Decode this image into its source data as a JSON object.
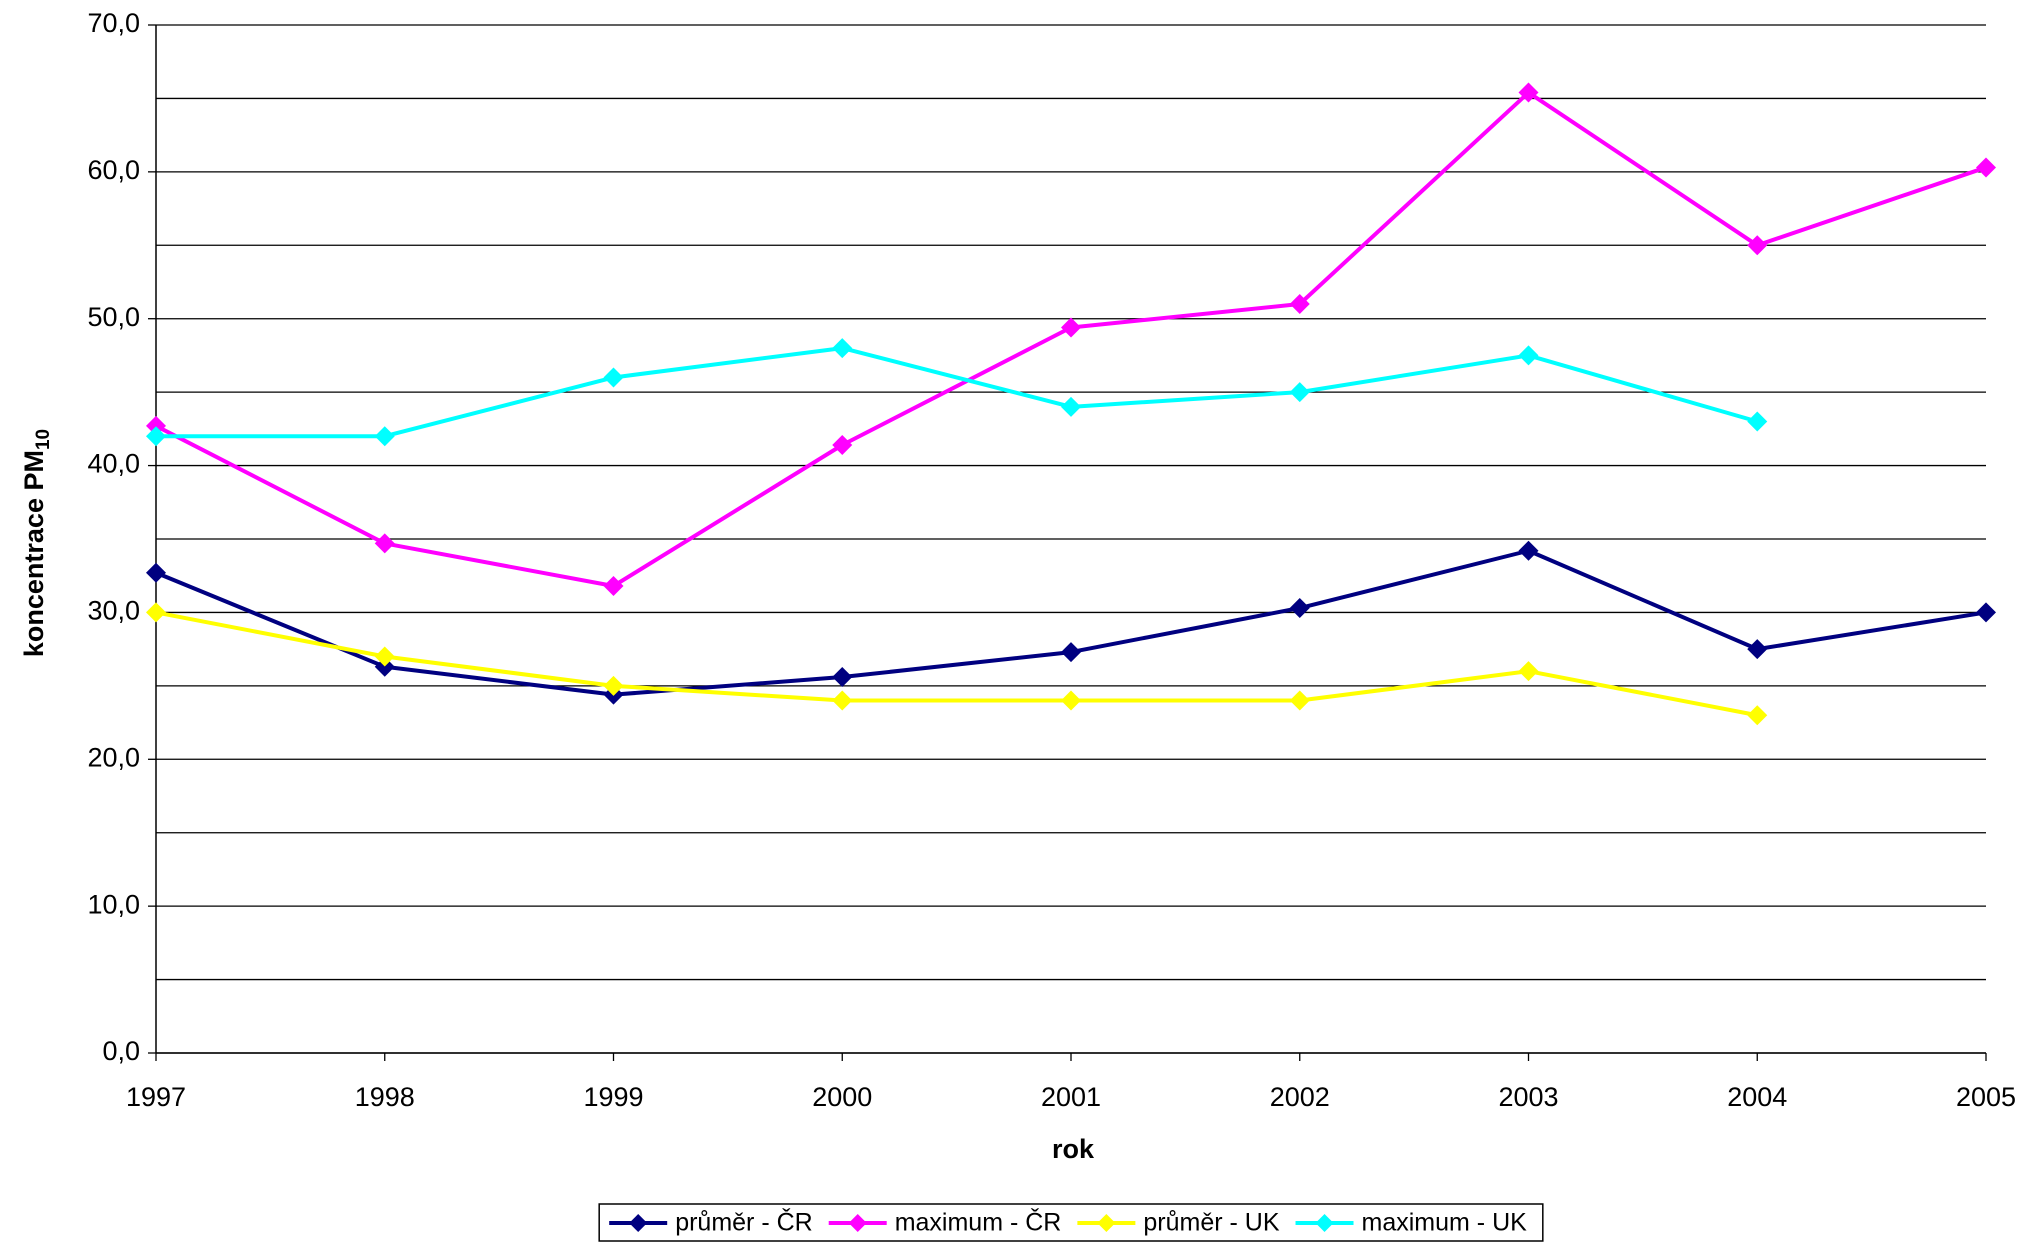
{
  "chart_data": {
    "type": "line",
    "x_label": "rok",
    "y_label": {
      "text": "koncentrace PM",
      "subscript": "10"
    },
    "categories": [
      "1997",
      "1998",
      "1999",
      "2000",
      "2001",
      "2002",
      "2003",
      "2004",
      "2005"
    ],
    "series": [
      {
        "name": "průměr - ČR",
        "color": "#000080",
        "values": [
          32.7,
          26.3,
          24.4,
          25.6,
          27.3,
          30.3,
          34.2,
          27.5,
          30.0
        ]
      },
      {
        "name": "maximum - ČR",
        "color": "#ff00ff",
        "values": [
          42.7,
          34.7,
          31.8,
          41.4,
          49.4,
          51.0,
          65.4,
          55.0,
          60.3
        ]
      },
      {
        "name": "průměr - UK",
        "color": "#ffff00",
        "values": [
          30.0,
          27.0,
          25.0,
          24.0,
          24.0,
          24.0,
          26.0,
          23.0,
          null
        ]
      },
      {
        "name": "maximum - UK",
        "color": "#00ffff",
        "values": [
          42.0,
          42.0,
          46.0,
          48.0,
          44.0,
          45.0,
          47.5,
          43.0,
          null
        ]
      }
    ],
    "ylim": [
      0,
      70
    ],
    "yticks": [
      {
        "value": 0,
        "label": "0,0"
      },
      {
        "value": 10,
        "label": "10,0"
      },
      {
        "value": 20,
        "label": "20,0"
      },
      {
        "value": 30,
        "label": "30,0"
      },
      {
        "value": 40,
        "label": "40,0"
      },
      {
        "value": 50,
        "label": "50,0"
      },
      {
        "value": 60,
        "label": "60,0"
      },
      {
        "value": 70,
        "label": "70,0"
      }
    ],
    "minor_gridlines": [
      5,
      15,
      25,
      35,
      45,
      55,
      65
    ],
    "grid": true,
    "legend": "bottom"
  }
}
